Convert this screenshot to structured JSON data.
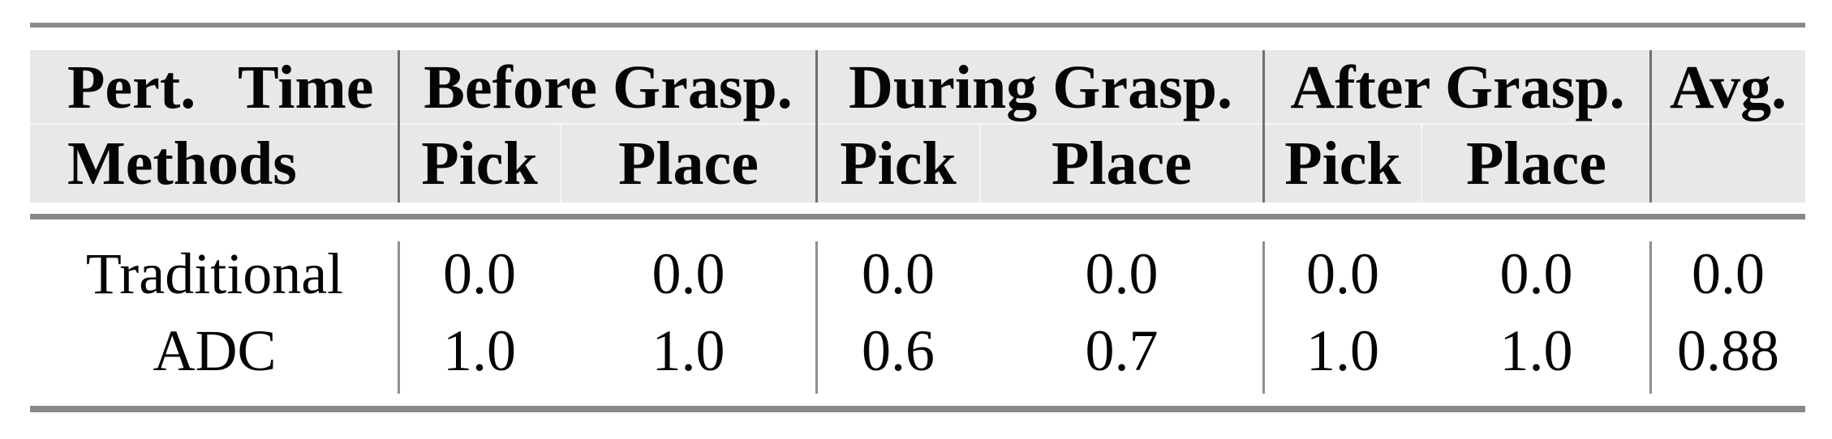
{
  "table": {
    "title_semantic": "Pick-and-place success rate under perturbations at different times",
    "header": {
      "corner_top": "Pert. Time",
      "corner_bottom": "Methods",
      "groups": [
        {
          "label": "Before Grasp."
        },
        {
          "label": "During Grasp."
        },
        {
          "label": "After Grasp."
        }
      ],
      "avg_label": "Avg.",
      "sub_columns": [
        "Pick",
        "Place",
        "Pick",
        "Place",
        "Pick",
        "Place"
      ]
    },
    "rows": [
      {
        "method": "Traditional",
        "values": [
          "0.0",
          "0.0",
          "0.0",
          "0.0",
          "0.0",
          "0.0",
          "0.0"
        ]
      },
      {
        "method": "ADC",
        "values": [
          "1.0",
          "1.0",
          "0.6",
          "0.7",
          "1.0",
          "1.0",
          "0.88"
        ]
      }
    ]
  },
  "chart_data": {
    "type": "table",
    "title": "Pert. Time / Methods",
    "column_groups": [
      "Before Grasp.",
      "During Grasp.",
      "After Grasp.",
      "Avg."
    ],
    "columns": [
      "Before Grasp. Pick",
      "Before Grasp. Place",
      "During Grasp. Pick",
      "During Grasp. Place",
      "After Grasp. Pick",
      "After Grasp. Place",
      "Avg."
    ],
    "rows": [
      {
        "method": "Traditional",
        "values": [
          0.0,
          0.0,
          0.0,
          0.0,
          0.0,
          0.0,
          0.0
        ]
      },
      {
        "method": "ADC",
        "values": [
          1.0,
          1.0,
          0.6,
          0.7,
          1.0,
          1.0,
          0.88
        ]
      }
    ]
  },
  "colors": {
    "page_background": "#ffffff",
    "header_background": "#e8e8e8",
    "thick_rule": "#898989",
    "header_divider": "#6f6f6f",
    "body_divider": "#8f8f8f",
    "text": "#050505"
  }
}
